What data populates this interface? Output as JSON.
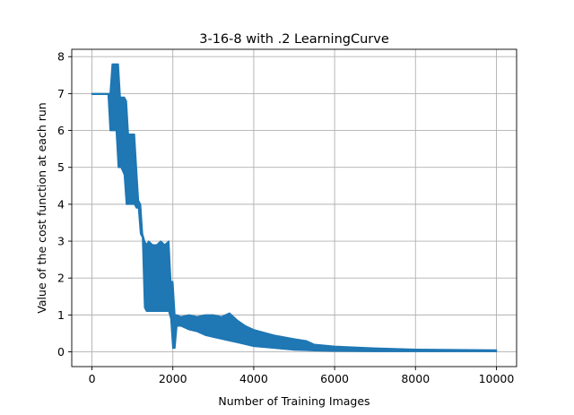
{
  "chart_data": {
    "type": "line",
    "title": "3-16-8 with .2 LearningCurve",
    "xlabel": "Number of Training Images",
    "ylabel": "Value of the cost function at each run",
    "xlim": [
      -500,
      10500
    ],
    "ylim": [
      -0.4,
      8.2
    ],
    "xticks": [
      "0",
      "2000",
      "4000",
      "6000",
      "8000",
      "10000"
    ],
    "yticks": [
      "0",
      "1",
      "2",
      "3",
      "4",
      "5",
      "6",
      "7",
      "8"
    ],
    "grid": true,
    "series_color": "#1f77b4",
    "series": [
      {
        "x": [
          0,
          400,
          450,
          500,
          520,
          600,
          650,
          700,
          720,
          800,
          850,
          900,
          950,
          1000,
          1050,
          1100,
          1150,
          1200,
          1250,
          1300,
          1350,
          1400,
          1500,
          1600,
          1700,
          1800,
          1900,
          1950,
          2000,
          2050,
          2100,
          2200,
          2400,
          2600,
          2800,
          3000,
          3200,
          3400,
          3600,
          3800,
          4000,
          4500,
          5000,
          5300,
          5500,
          6000,
          7000,
          8000,
          9000,
          10000
        ],
        "y_low": [
          6.98,
          6.98,
          6.0,
          6.0,
          6.0,
          6.0,
          5.0,
          5.0,
          5.0,
          4.8,
          4.0,
          4.0,
          4.0,
          4.0,
          4.0,
          3.9,
          3.9,
          3.2,
          3.1,
          1.2,
          1.1,
          1.1,
          1.1,
          1.1,
          1.1,
          1.1,
          1.1,
          0.9,
          0.1,
          0.1,
          0.7,
          0.7,
          0.6,
          0.55,
          0.45,
          0.4,
          0.35,
          0.3,
          0.25,
          0.2,
          0.15,
          0.1,
          0.05,
          0.04,
          0.03,
          0.02,
          0.01,
          0.01,
          0.01,
          0.01
        ],
        "y_high": [
          7.0,
          7.0,
          7.0,
          7.8,
          7.8,
          7.8,
          7.8,
          6.9,
          6.9,
          6.9,
          6.8,
          5.9,
          5.9,
          5.9,
          5.9,
          5.0,
          4.1,
          4.0,
          3.2,
          3.0,
          2.9,
          3.0,
          2.9,
          2.9,
          3.0,
          2.9,
          3.0,
          1.9,
          1.9,
          1.0,
          1.0,
          0.95,
          1.0,
          0.95,
          1.0,
          1.0,
          0.95,
          1.05,
          0.85,
          0.7,
          0.6,
          0.45,
          0.35,
          0.3,
          0.2,
          0.15,
          0.1,
          0.07,
          0.06,
          0.05
        ]
      }
    ]
  }
}
